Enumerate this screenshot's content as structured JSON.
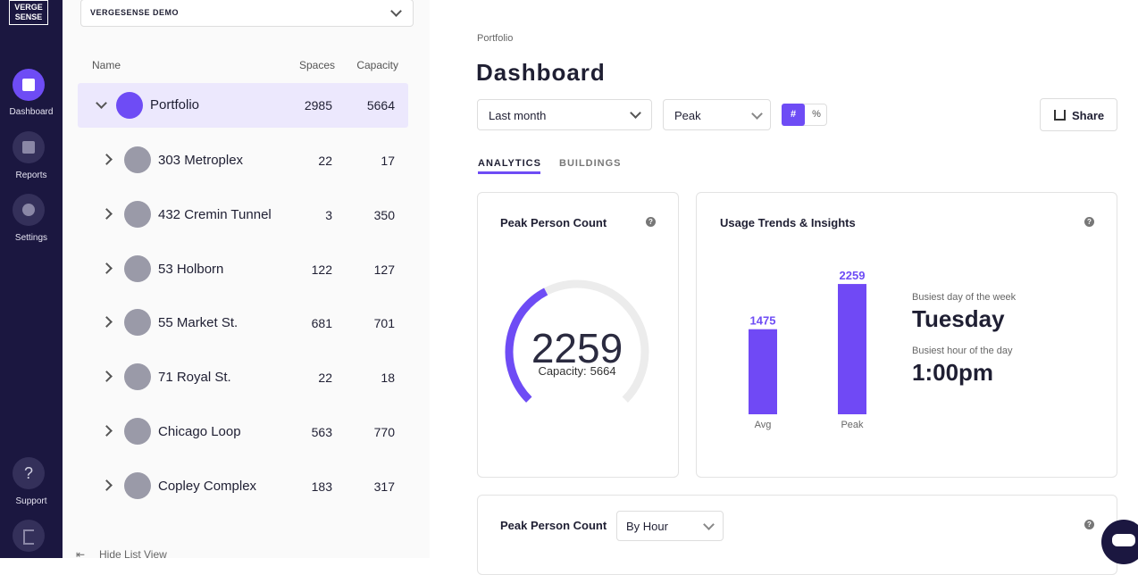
{
  "sidebar": {
    "logo": [
      "VERGE",
      "SENSE"
    ],
    "nav": [
      "Dashboard",
      "Reports",
      "Settings"
    ],
    "support": "Support"
  },
  "list": {
    "selector": "VERGESENSE DEMO",
    "headers": [
      "Name",
      "Spaces",
      "Capacity"
    ],
    "portfolio": {
      "name": "Portfolio",
      "spaces": 2985,
      "capacity": 5664
    },
    "rows": [
      {
        "name": "303 Metroplex",
        "spaces": 22,
        "capacity": 17
      },
      {
        "name": "432 Cremin Tunnel",
        "spaces": 3,
        "capacity": 350
      },
      {
        "name": "53 Holborn",
        "spaces": 122,
        "capacity": 127
      },
      {
        "name": "55 Market St.",
        "spaces": 681,
        "capacity": 701
      },
      {
        "name": "71 Royal St.",
        "spaces": 22,
        "capacity": 18
      },
      {
        "name": "Chicago Loop",
        "spaces": 563,
        "capacity": 770
      },
      {
        "name": "Copley Complex",
        "spaces": 183,
        "capacity": 317
      }
    ],
    "hide": "Hide List View"
  },
  "header": {
    "breadcrumb": "Portfolio",
    "title": "Dashboard",
    "period": "Last month",
    "metric": "Peak",
    "toggle": [
      "#",
      "%"
    ],
    "share": "Share"
  },
  "tabs": [
    "ANALYTICS",
    "BUILDINGS"
  ],
  "peak_card": {
    "title": "Peak Person Count",
    "value": 2259,
    "capacity_label": "Capacity:",
    "capacity": 5664
  },
  "usage_card": {
    "title": "Usage Trends & Insights",
    "bars": [
      {
        "label": "Avg",
        "value": 1475
      },
      {
        "label": "Peak",
        "value": 2259
      }
    ],
    "day_label": "Busiest day of the week",
    "day": "Tuesday",
    "hour_label": "Busiest hour of the day",
    "hour": "1:00pm"
  },
  "bottom_card": {
    "title": "Peak Person Count",
    "grouping": "By Hour"
  }
}
